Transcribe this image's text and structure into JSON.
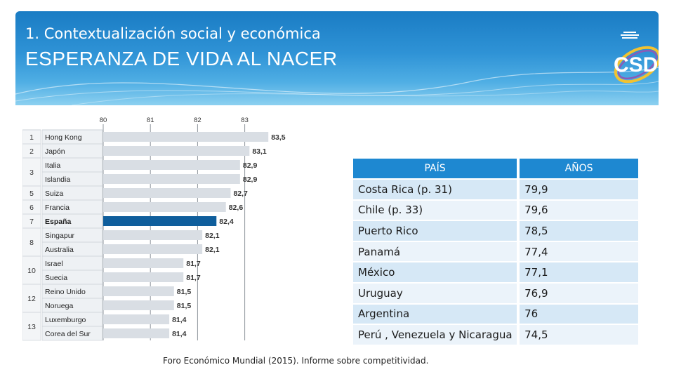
{
  "header": {
    "subtitle": "1. Contextualización social y económica",
    "title": "ESPERANZA DE VIDA AL NACER"
  },
  "logo": {
    "text": "CSD"
  },
  "chart_data": {
    "type": "bar",
    "orientation": "horizontal",
    "xlim": [
      80,
      83.6
    ],
    "ticks": [
      "80",
      "81",
      "82",
      "83"
    ],
    "ranks": [
      "1",
      "2",
      "3",
      "5",
      "6",
      "7",
      "8",
      "10",
      "12",
      "13"
    ],
    "countries": [
      "Hong Kong",
      "Japón",
      "Italia",
      "Islandia",
      "Suiza",
      "Francia",
      "España",
      "Singapur",
      "Australia",
      "Israel",
      "Suecia",
      "Reino Unido",
      "Noruega",
      "Luxemburgo",
      "Corea del Sur"
    ],
    "values": [
      83.5,
      83.1,
      82.9,
      82.9,
      82.7,
      82.6,
      82.4,
      82.1,
      82.1,
      81.7,
      81.7,
      81.5,
      81.5,
      81.4,
      81.4
    ],
    "value_labels": [
      "83,5",
      "83,1",
      "82,9",
      "82,9",
      "82,7",
      "82,6",
      "82,4",
      "82,1",
      "82,1",
      "81,7",
      "81,7",
      "81,5",
      "81,5",
      "81,4",
      "81,4"
    ],
    "highlight": "España",
    "colors": {
      "bar": "#d9dee4",
      "highlight": "#0f5e9c"
    }
  },
  "table": {
    "headers": [
      "PAÍS",
      "AÑOS"
    ],
    "rows": [
      [
        "Costa Rica (p. 31)",
        "79,9"
      ],
      [
        "Chile (p. 33)",
        "79,6"
      ],
      [
        "Puerto Rico",
        "78,5"
      ],
      [
        "Panamá",
        "77,4"
      ],
      [
        "México",
        "77,1"
      ],
      [
        "Uruguay",
        "76,9"
      ],
      [
        "Argentina",
        "76"
      ],
      [
        "Perú , Venezuela y Nicaragua",
        "74,5"
      ]
    ]
  },
  "source": "Foro Económico Mundial (2015). Informe sobre competitividad."
}
